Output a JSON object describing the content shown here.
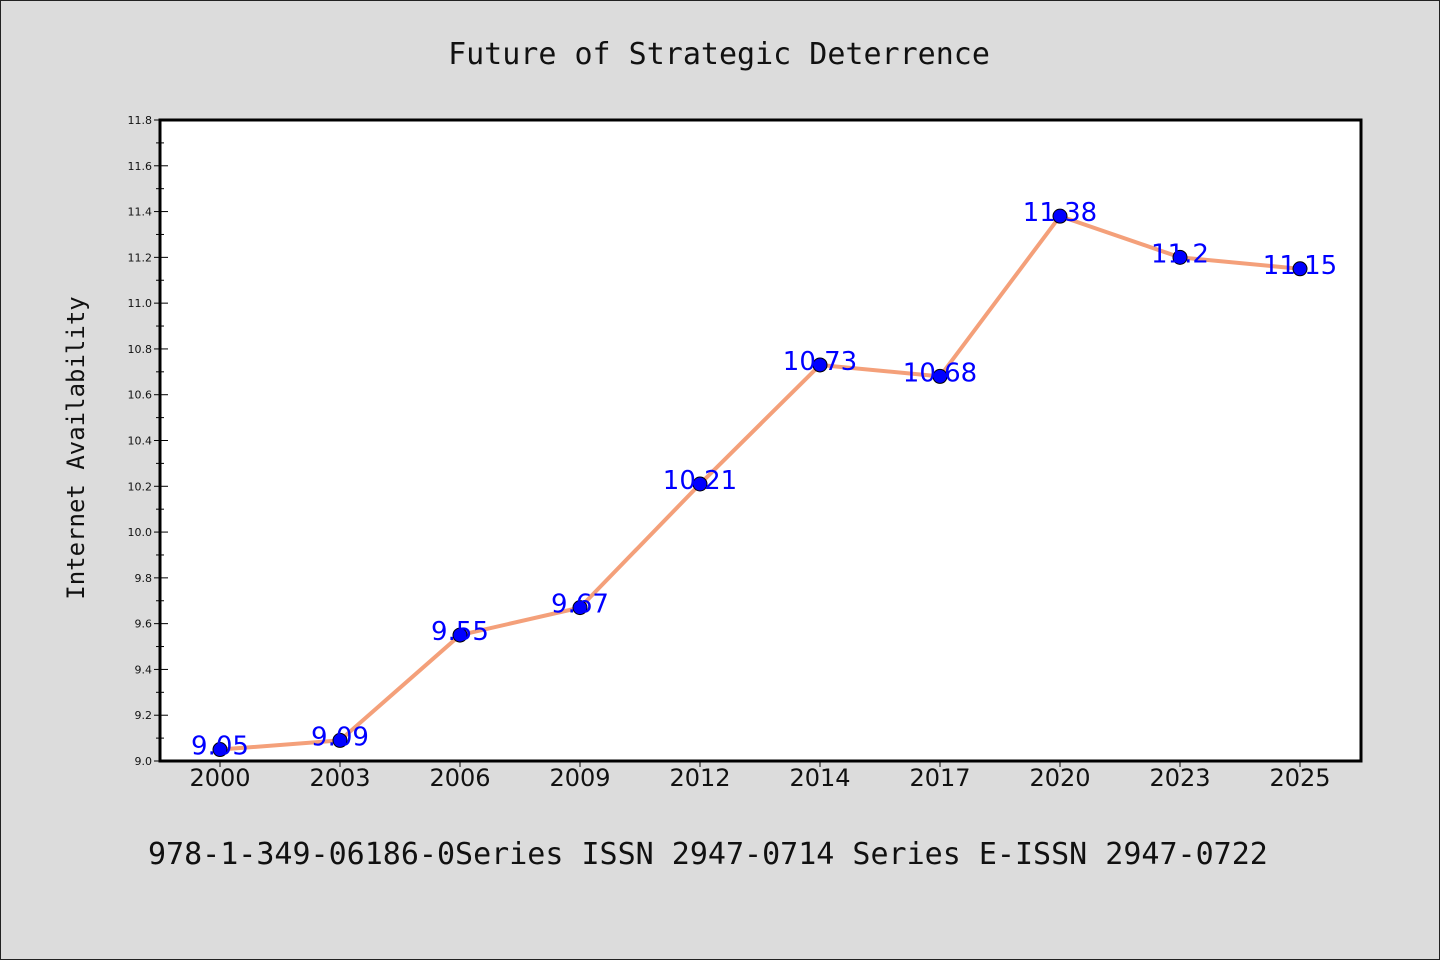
{
  "chart_data": {
    "type": "line",
    "title": "Future of Strategic Deterrence",
    "xlabel": "",
    "ylabel": "Internet Availability",
    "categories": [
      "2000",
      "2003",
      "2006",
      "2009",
      "2012",
      "2014",
      "2017",
      "2020",
      "2023",
      "2025"
    ],
    "values": [
      9.05,
      9.09,
      9.55,
      9.67,
      10.21,
      10.73,
      10.68,
      11.38,
      11.2,
      11.15
    ],
    "data_labels": [
      "9.05",
      "9.09",
      "9.55",
      "9.67",
      "10.21",
      "10.73",
      "10.68",
      "11.38",
      "11.2",
      "11.15"
    ],
    "ylim": [
      9.0,
      11.8
    ],
    "y_ticks": [
      "9.0",
      "9.2",
      "9.4",
      "9.6",
      "9.8",
      "10.0",
      "10.2",
      "10.4",
      "10.6",
      "10.8",
      "11.0",
      "11.2",
      "11.4",
      "11.6",
      "11.8"
    ],
    "grid": false,
    "legend": "none",
    "line_color": "#f4a07a",
    "marker_color": "#0000ff",
    "label_color": "#0000ff"
  },
  "footer": {
    "text": "978-1-349-06186-0Series ISSN 2947-0714 Series E-ISSN 2947-0722"
  },
  "colors": {
    "background": "#dcdcdc",
    "plot_background": "#ffffff"
  }
}
